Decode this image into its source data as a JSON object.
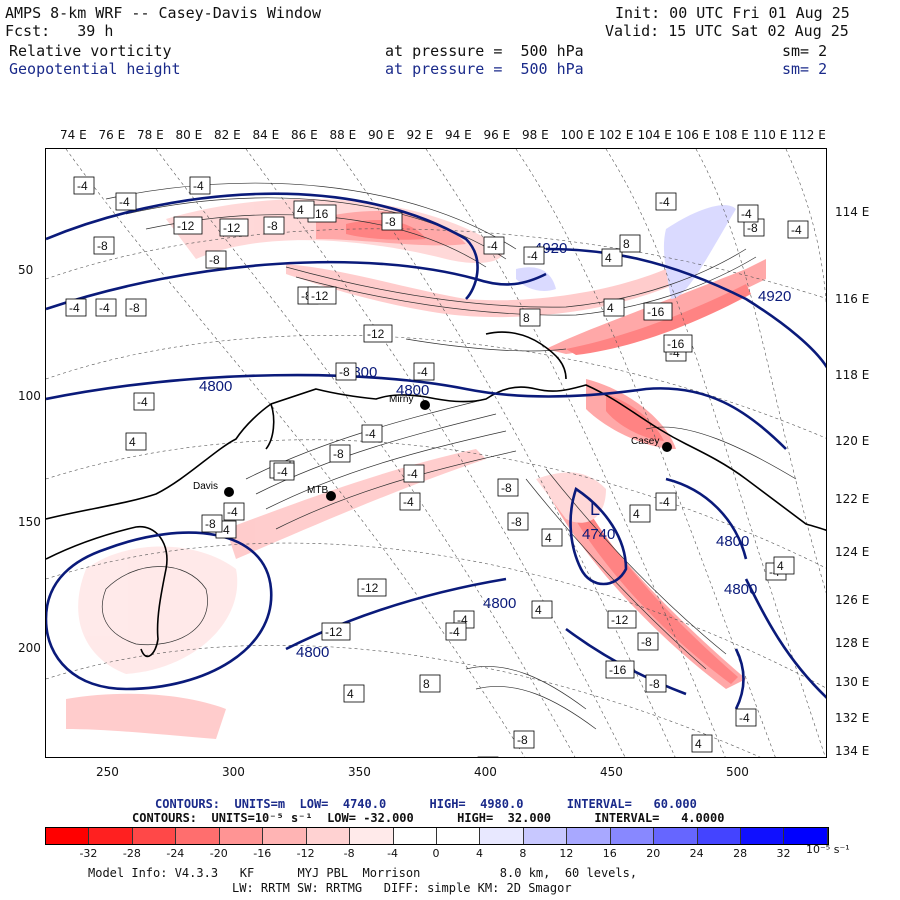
{
  "header": {
    "title": "AMPS 8-km WRF -- Casey-Davis Window",
    "fcst": "Fcst:   39 h",
    "init": "Init: 00 UTC Fri 01 Aug 25",
    "valid": "Valid: 15 UTC Sat 02 Aug 25",
    "field1_name": "Relative vorticity",
    "field1_level": "at pressure =  500 hPa",
    "field1_sm": "sm= 2",
    "field2_name": "Geopotential height",
    "field2_level": "at pressure =  500 hPa",
    "field2_sm": "sm= 2"
  },
  "map": {
    "top_lon_labels": [
      "74 E",
      "76 E",
      "78 E",
      "80 E",
      "82 E",
      "84 E",
      "86 E",
      "88 E",
      "90 E",
      "92 E",
      "94 E",
      "96 E",
      "98 E",
      "100 E",
      "102 E",
      "104 E",
      "106 E",
      "108 E",
      "110 E",
      "112 E"
    ],
    "right_lon_labels": [
      "114 E",
      "116 E",
      "118 E",
      "120 E",
      "122 E",
      "124 E",
      "126 E",
      "128 E",
      "130 E",
      "132 E",
      "134 E"
    ],
    "left_y_labels": [
      "50",
      "100",
      "150",
      "200"
    ],
    "bottom_x_labels": [
      "250",
      "300",
      "350",
      "400",
      "450",
      "500"
    ],
    "stations": [
      {
        "name": "Davis",
        "x": 228,
        "y": 491
      },
      {
        "name": "Mirny",
        "x": 424,
        "y": 404
      },
      {
        "name": "Casey",
        "x": 666,
        "y": 446
      },
      {
        "name": "MTB",
        "x": 330,
        "y": 495
      }
    ],
    "height_contour_labels": [
      "4920",
      "4920",
      "4800",
      "4800",
      "4800",
      "4800",
      "4740",
      "4800",
      "4800",
      "4800"
    ],
    "low_label": "L",
    "vorticity_labels": [
      "-4",
      "-4",
      "-4",
      "-8",
      "-12",
      "-12",
      "-8",
      "-16",
      "-8",
      "-4",
      "-4",
      "-4",
      "-8",
      "-4",
      "-8",
      "4",
      "4",
      "8",
      "4",
      "-4",
      "-8",
      "-12",
      "-16",
      "-4",
      "8",
      "-4",
      "-8",
      "-12",
      "-4",
      "-16",
      "-4",
      "-4",
      "-4",
      "4",
      "-8",
      "-4",
      "-4",
      "-4",
      "-8",
      "-4",
      "-4",
      "-8",
      "-4",
      "-4",
      "-8",
      "-4",
      "-12",
      "-4",
      "-4",
      "-4",
      "4",
      "-8",
      "4",
      "-8",
      "-12",
      "-12",
      "-16",
      "-8",
      "-4",
      "4",
      "4",
      "4",
      "8",
      "4",
      "4",
      "-8"
    ]
  },
  "legend": {
    "contours_line1": "CONTOURS:  UNITS=m  LOW=  4740.0      HIGH=  4980.0      INTERVAL=   60.000",
    "contours_line2": "CONTOURS:  UNITS=10⁻⁵ s⁻¹  LOW= -32.000      HIGH=  32.000      INTERVAL=   4.0000",
    "colorbar_labels": [
      "-32",
      "-28",
      "-24",
      "-20",
      "-16",
      "-12",
      "-8",
      "-4",
      "0",
      "4",
      "8",
      "12",
      "16",
      "20",
      "24",
      "28",
      "32"
    ],
    "colorbar_unit": "10⁻⁵ s⁻¹",
    "colors": [
      "#ff0000",
      "#ff2020",
      "#ff4848",
      "#ff6e6e",
      "#ff9494",
      "#ffb4b4",
      "#ffd2d2",
      "#ffeaea",
      "#ffffff",
      "#ffffff",
      "#e8e8ff",
      "#c8c8ff",
      "#a8a8ff",
      "#8888ff",
      "#6666ff",
      "#4444ff",
      "#1010ff",
      "#0000ff"
    ]
  },
  "footer": {
    "model_info": "Model Info: V4.3.3   KF      MYJ PBL  Morrison           8.0 km,  60 levels,",
    "model_info2": "LW: RRTM SW: RRTMG   DIFF: simple KM: 2D Smagor"
  }
}
